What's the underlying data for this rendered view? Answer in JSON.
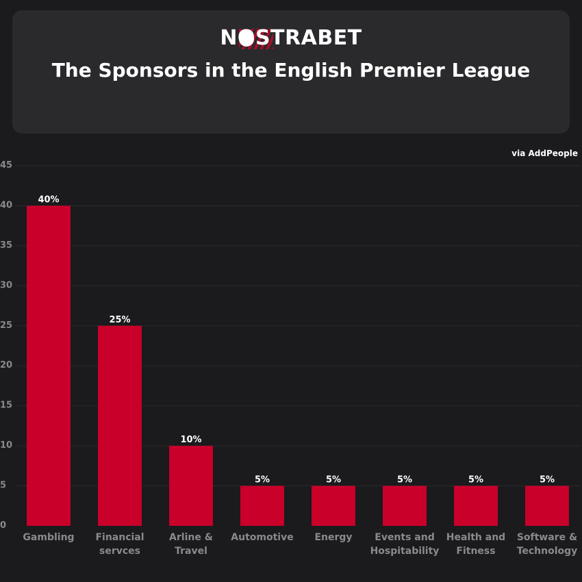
{
  "header": {
    "logo_text": "NOSTRABET",
    "title": "The Sponsors in the English Premier League"
  },
  "source": "via AddPeople",
  "colors": {
    "background": "#1b1a1d",
    "card": "#2a2a2d",
    "bar": "#c8002a",
    "text": "#ffffff",
    "muted": "#8a8a8e"
  },
  "chart_data": {
    "type": "bar",
    "categories": [
      [
        "Gambling"
      ],
      [
        "Financial",
        "servces"
      ],
      [
        "Arline &",
        "Travel"
      ],
      [
        "Automotive"
      ],
      [
        "Energy"
      ],
      [
        "Events and",
        "Hospitability"
      ],
      [
        "Health and",
        "Fitness"
      ],
      [
        "Software &",
        "Technology"
      ]
    ],
    "values": [
      40,
      25,
      10,
      5,
      5,
      5,
      5,
      5
    ],
    "data_labels": [
      "40%",
      "25%",
      "10%",
      "5%",
      "5%",
      "5%",
      "5%",
      "5%"
    ],
    "yticks": [
      0,
      5,
      10,
      15,
      20,
      25,
      30,
      35,
      40,
      45
    ],
    "ylim": [
      0,
      45
    ],
    "grid": true,
    "legend": "none"
  }
}
